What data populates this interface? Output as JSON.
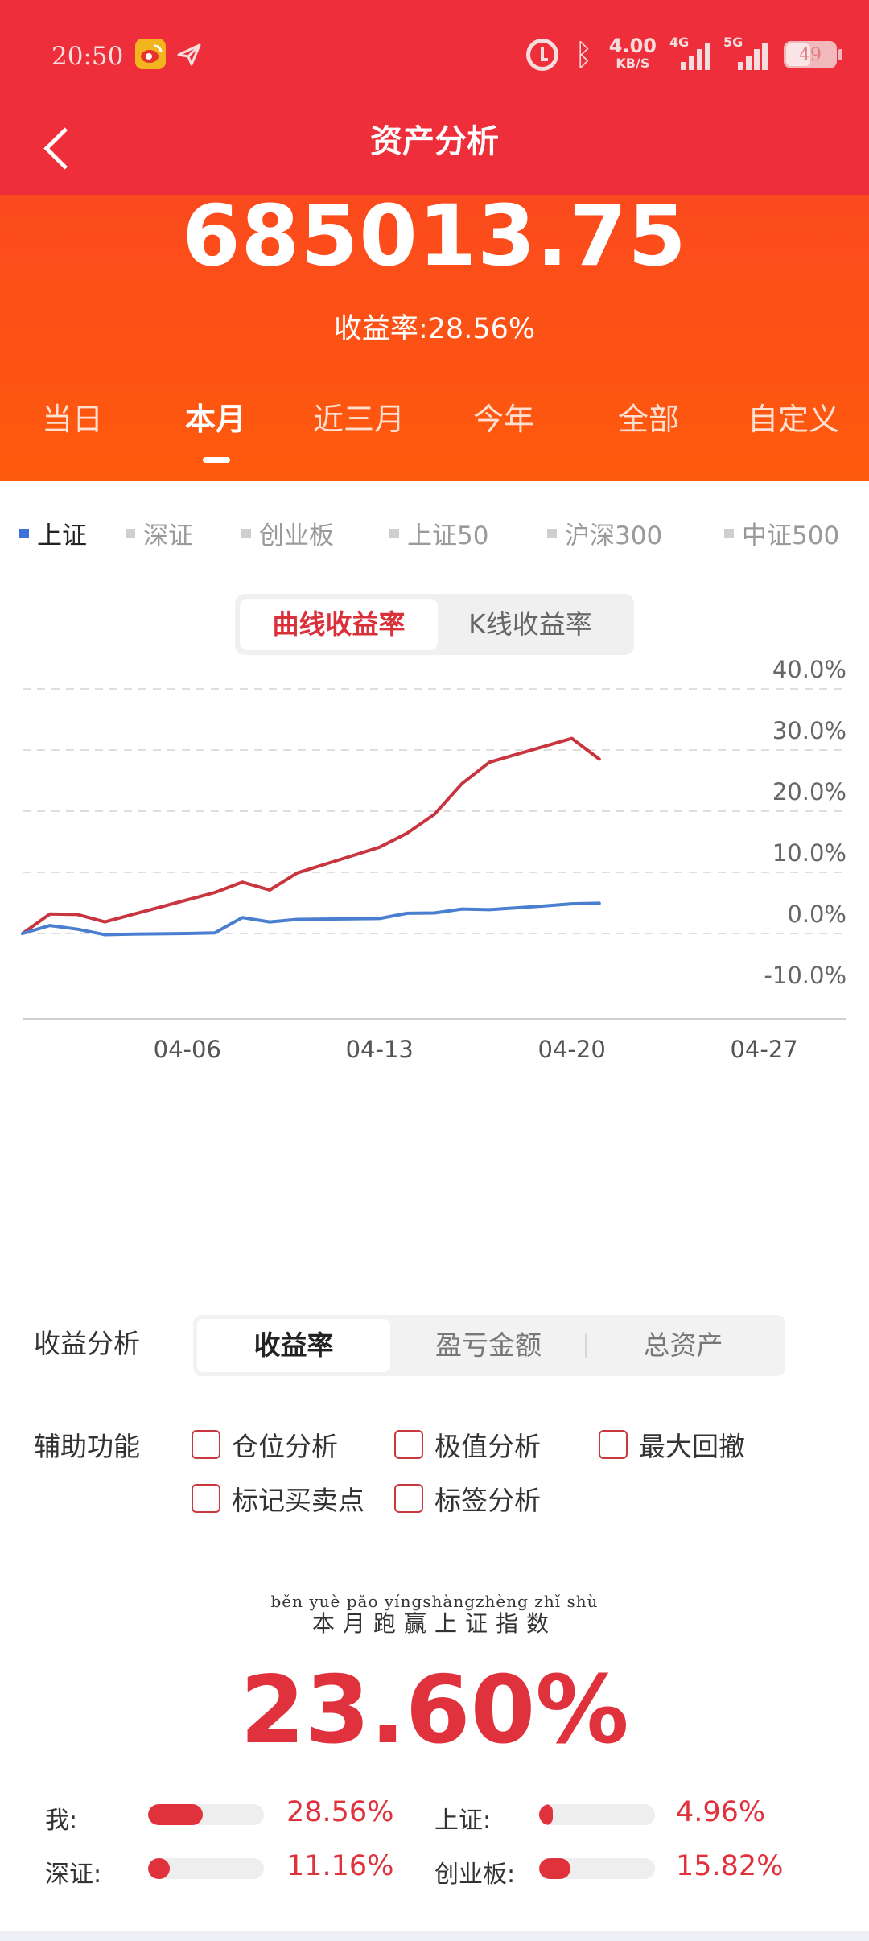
{
  "status": {
    "time": "20:50",
    "net_speed": "4.00",
    "net_unit": "KB/S",
    "sig1_label": "4G",
    "sig2_label": "5G",
    "battery": "49"
  },
  "nav": {
    "title": "资产分析"
  },
  "summary": {
    "total_assets": "685013.75",
    "return_rate_label": "收益率:28.56%"
  },
  "period_tabs": [
    "当日",
    "本月",
    "近三月",
    "今年",
    "全部",
    "自定义"
  ],
  "active_period": "本月",
  "indices": [
    "上证",
    "深证",
    "创业板",
    "上证50",
    "沪深300",
    "中证500"
  ],
  "active_index": "上证",
  "chart_modes": {
    "active": "曲线收益率",
    "inactive": "K线收益率"
  },
  "chart_data": {
    "type": "line",
    "y_ticks": [
      "40.0%",
      "30.0%",
      "20.0%",
      "10.0%",
      "0.0%",
      "-10.0%"
    ],
    "ylim": [
      -10,
      40
    ],
    "x_ticks": [
      "04-06",
      "04-13",
      "04-20",
      "04-27"
    ],
    "x_tick_days": [
      6,
      13,
      20,
      27
    ],
    "xlim": [
      0,
      30
    ],
    "grid": true,
    "series": [
      {
        "color": "#c9353f",
        "x": [
          0,
          1,
          2,
          3,
          4,
          5,
          6,
          7,
          8,
          9,
          10,
          11,
          12,
          13,
          14,
          15,
          16,
          17,
          18,
          19,
          20,
          21
        ],
        "values": [
          0.0,
          3.2,
          3.1,
          1.9,
          3.1,
          4.3,
          5.5,
          6.7,
          8.4,
          7.1,
          9.9,
          11.3,
          12.7,
          14.1,
          16.4,
          19.5,
          24.5,
          28.0,
          29.3,
          30.6,
          31.9,
          28.5
        ]
      },
      {
        "color": "#4a7fd0",
        "x": [
          0,
          1,
          2,
          3,
          4,
          5,
          6,
          7,
          8,
          9,
          10,
          11,
          12,
          13,
          14,
          15,
          16,
          17,
          18,
          19,
          20,
          21
        ],
        "values": [
          0.0,
          1.3,
          0.7,
          -0.2,
          -0.1,
          -0.05,
          0.0,
          0.1,
          2.6,
          1.9,
          2.3,
          2.35,
          2.4,
          2.45,
          3.3,
          3.35,
          4.0,
          3.9,
          4.2,
          4.5,
          4.85,
          4.95
        ]
      }
    ]
  },
  "analysis": {
    "label": "收益分析",
    "tabs": [
      "收益率",
      "盈亏金额",
      "总资产"
    ],
    "active": "收益率"
  },
  "aux": {
    "label": "辅助功能",
    "options": [
      "仓位分析",
      "极值分析",
      "最大回撤",
      "标记买卖点",
      "标签分析"
    ]
  },
  "outperform": {
    "pinyin": "běn yuè pǎo yíngshàngzhèng zhǐ shù",
    "text": "本月跑赢上证指数",
    "value": "23.60%"
  },
  "comparison": [
    {
      "label": "我:",
      "value": "28.56%",
      "fraction": 0.47
    },
    {
      "label": "上证:",
      "value": "4.96%",
      "fraction": 0.09
    },
    {
      "label": "深证:",
      "value": "11.16%",
      "fraction": 0.19
    },
    {
      "label": "创业板:",
      "value": "15.82%",
      "fraction": 0.27
    }
  ]
}
